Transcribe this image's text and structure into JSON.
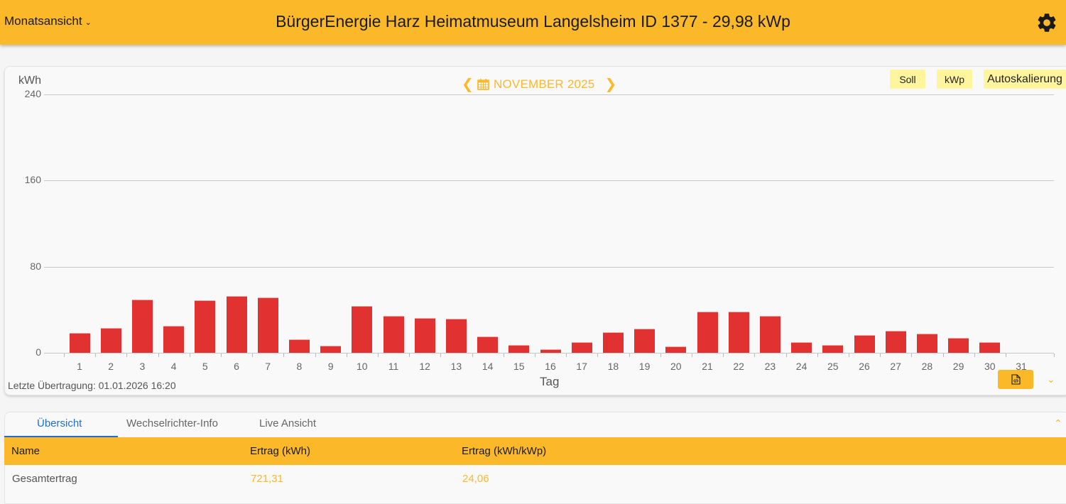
{
  "header": {
    "view_select": "Monatsansicht",
    "title": "BürgerEnergie Harz Heimatmuseum Langelsheim ID 1377 - 29,98 kWp",
    "settings_icon": "gear-icon"
  },
  "chart_controls": {
    "month_label": "NOVEMBER 2025",
    "prev_icon": "chevron-left-icon",
    "next_icon": "chevron-right-icon",
    "calendar_icon": "calendar-icon",
    "chips": [
      "Soll",
      "kWp",
      "Autoskalierung"
    ]
  },
  "chart_data": {
    "type": "bar",
    "title": "NOVEMBER 2025",
    "xlabel": "Tag",
    "ylabel": "kWh",
    "ylim": [
      0,
      240
    ],
    "yticks": [
      0,
      80,
      160,
      240
    ],
    "grid": true,
    "legend": null,
    "categories": [
      "1",
      "2",
      "3",
      "4",
      "5",
      "6",
      "7",
      "8",
      "9",
      "10",
      "11",
      "12",
      "13",
      "14",
      "15",
      "16",
      "17",
      "18",
      "19",
      "20",
      "21",
      "22",
      "23",
      "24",
      "25",
      "26",
      "27",
      "28",
      "29",
      "30",
      "31"
    ],
    "series": [
      {
        "name": "Ertrag (kWh)",
        "color": "#e13131",
        "values": [
          18.5,
          23,
          49.5,
          25,
          49,
          53,
          51.5,
          12.5,
          6.5,
          43.5,
          34.5,
          32.5,
          31.5,
          15,
          7,
          3,
          10,
          19,
          22.5,
          6,
          38.5,
          38.5,
          34.5,
          10,
          7.5,
          16.5,
          20.5,
          18,
          14,
          10,
          0
        ]
      }
    ]
  },
  "footer": {
    "last_transmission": "Letzte Übertragung: 01.01.2026 16:20",
    "export_icon": "file-code-icon",
    "collapse_icon": "chevron-down-icon"
  },
  "tabs": [
    {
      "label": "Übersicht",
      "active": true
    },
    {
      "label": "Wechselrichter-Info",
      "active": false
    },
    {
      "label": "Live Ansicht",
      "active": false
    }
  ],
  "table": {
    "columns": [
      "Name",
      "Ertrag (kWh)",
      "Ertrag (kWh/kWp)"
    ],
    "rows": [
      [
        "Gesamtertrag",
        "721,31",
        "24,06"
      ]
    ]
  },
  "colors": {
    "accent": "#fbb829",
    "bar": "#e13131",
    "chip": "#fff59d",
    "active_tab": "#1e6fd0"
  }
}
